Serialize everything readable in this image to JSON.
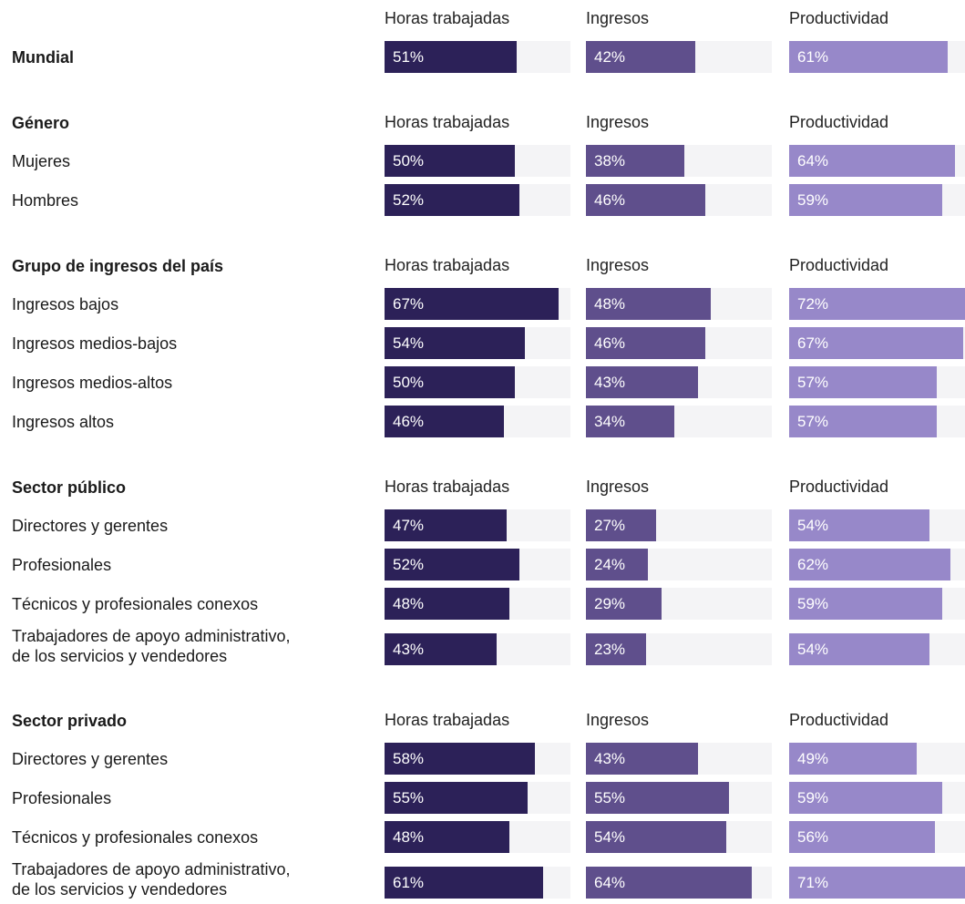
{
  "chart_data": {
    "type": "bar",
    "metrics": [
      "Horas trabajadas",
      "Ingresos",
      "Productividad"
    ],
    "colors": [
      "#2c2158",
      "#5f4f8c",
      "#9788c9"
    ],
    "xlim": [
      0,
      100
    ],
    "groups": [
      {
        "title": "Mundial",
        "show_headers": true,
        "title_is_row": true,
        "rows": [
          {
            "label": "Mundial",
            "values": [
              51,
              42,
              61
            ],
            "value_labels": [
              "51%",
              "42%",
              "61%"
            ]
          }
        ]
      },
      {
        "title": "Género",
        "show_headers": true,
        "title_is_row": false,
        "rows": [
          {
            "label": "Mujeres",
            "values": [
              50,
              38,
              64
            ],
            "value_labels": [
              "50%",
              "38%",
              "64%"
            ]
          },
          {
            "label": "Hombres",
            "values": [
              52,
              46,
              59
            ],
            "value_labels": [
              "52%",
              "46%",
              "59%"
            ]
          }
        ]
      },
      {
        "title": "Grupo de ingresos del país",
        "show_headers": true,
        "title_is_row": false,
        "rows": [
          {
            "label": "Ingresos bajos",
            "values": [
              67,
              48,
              72
            ],
            "value_labels": [
              "67%",
              "48%",
              "72%"
            ]
          },
          {
            "label": "Ingresos medios-bajos",
            "values": [
              54,
              46,
              67
            ],
            "value_labels": [
              "54%",
              "46%",
              "67%"
            ]
          },
          {
            "label": "Ingresos medios-altos",
            "values": [
              50,
              43,
              57
            ],
            "value_labels": [
              "50%",
              "43%",
              "57%"
            ]
          },
          {
            "label": "Ingresos altos",
            "values": [
              46,
              34,
              57
            ],
            "value_labels": [
              "46%",
              "34%",
              "57%"
            ]
          }
        ]
      },
      {
        "title": "Sector público",
        "show_headers": true,
        "title_is_row": false,
        "rows": [
          {
            "label": "Directores y gerentes",
            "values": [
              47,
              27,
              54
            ],
            "value_labels": [
              "47%",
              "27%",
              "54%"
            ]
          },
          {
            "label": "Profesionales",
            "values": [
              52,
              24,
              62
            ],
            "value_labels": [
              "52%",
              "24%",
              "62%"
            ]
          },
          {
            "label": "Técnicos y profesionales conexos",
            "values": [
              48,
              29,
              59
            ],
            "value_labels": [
              "48%",
              "29%",
              "59%"
            ]
          },
          {
            "label": "Trabajadores de apoyo administrativo,\nde los servicios y vendedores",
            "values": [
              43,
              23,
              54
            ],
            "value_labels": [
              "43%",
              "23%",
              "54%"
            ]
          }
        ]
      },
      {
        "title": "Sector privado",
        "show_headers": true,
        "title_is_row": false,
        "rows": [
          {
            "label": "Directores y gerentes",
            "values": [
              58,
              43,
              49
            ],
            "value_labels": [
              "58%",
              "43%",
              "49%"
            ]
          },
          {
            "label": "Profesionales",
            "values": [
              55,
              55,
              59
            ],
            "value_labels": [
              "55%",
              "55%",
              "59%"
            ]
          },
          {
            "label": "Técnicos y profesionales conexos",
            "values": [
              48,
              54,
              56
            ],
            "value_labels": [
              "48%",
              "54%",
              "56%"
            ]
          },
          {
            "label": "Trabajadores de apoyo administrativo,\nde los servicios y vendedores",
            "values": [
              61,
              64,
              71
            ],
            "value_labels": [
              "61%",
              "64%",
              "71%"
            ]
          }
        ]
      }
    ]
  }
}
